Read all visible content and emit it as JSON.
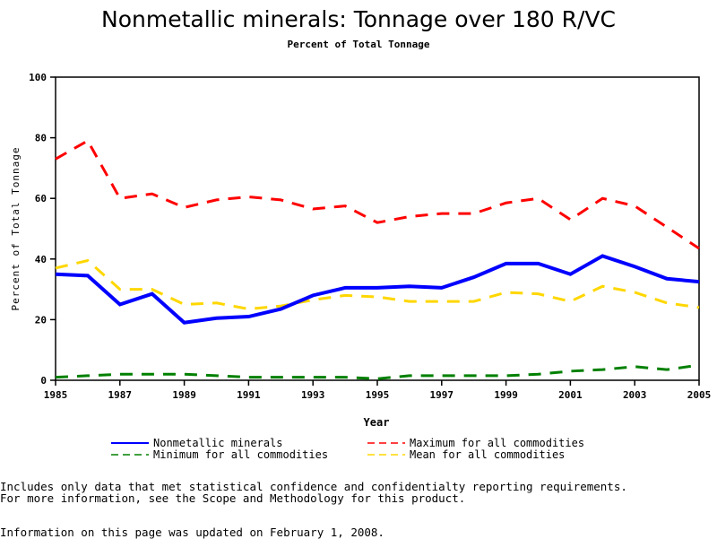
{
  "chart_data": {
    "type": "line",
    "title": "Nonmetallic minerals: Tonnage over 180 R/VC",
    "subtitle": "Percent of Total Tonnage",
    "xlabel": "Year",
    "ylabel": "Percent of Total Tonnage",
    "xlim": [
      1985,
      2005
    ],
    "ylim": [
      0,
      100
    ],
    "xticks": [
      "1985",
      "1987",
      "1989",
      "1991",
      "1993",
      "1995",
      "1997",
      "1999",
      "2001",
      "2003",
      "2005"
    ],
    "yticks": [
      "0",
      "20",
      "40",
      "60",
      "80",
      "100"
    ],
    "x": [
      1985,
      1986,
      1987,
      1988,
      1989,
      1990,
      1991,
      1992,
      1993,
      1994,
      1995,
      1996,
      1997,
      1998,
      1999,
      2000,
      2001,
      2002,
      2003,
      2004,
      2005
    ],
    "series": [
      {
        "name": "Nonmetallic minerals",
        "color": "#0000ff",
        "dash": "solid",
        "values": [
          35,
          34.5,
          25,
          28.5,
          19,
          20.5,
          21,
          23.5,
          28,
          30.5,
          30.5,
          31,
          30.5,
          34,
          38.5,
          38.5,
          35,
          41,
          37.5,
          33.5,
          32.5
        ]
      },
      {
        "name": "Maximum for all commodities",
        "color": "#ff0000",
        "dash": "dashed",
        "values": [
          73,
          79,
          60,
          61.5,
          57,
          59.5,
          60.5,
          59.5,
          56.5,
          57.5,
          52,
          54,
          55,
          55,
          58.5,
          60,
          53,
          60,
          57.5,
          50.5,
          43.5
        ]
      },
      {
        "name": "Minimum for all commodities",
        "color": "#008000",
        "dash": "dashed",
        "values": [
          1,
          1.5,
          2,
          2,
          2,
          1.5,
          1,
          1,
          1,
          1,
          0.5,
          1.5,
          1.5,
          1.5,
          1.5,
          2,
          3,
          3.5,
          4.5,
          3.5,
          5
        ]
      },
      {
        "name": "Mean for all commodities",
        "color": "#ffd700",
        "dash": "dashed",
        "values": [
          37,
          39.5,
          30,
          30,
          25,
          25.5,
          23.5,
          24.5,
          26.5,
          28,
          27.5,
          26,
          26,
          26,
          29,
          28.5,
          26,
          31,
          29,
          25.5,
          24
        ]
      }
    ],
    "legend_position": "bottom"
  },
  "footnotes": [
    "Includes only data that met statistical confidence and confidentialty reporting requirements.",
    "For more information, see the Scope and Methodology for this product.",
    "Information on this page was updated on February 1, 2008."
  ]
}
